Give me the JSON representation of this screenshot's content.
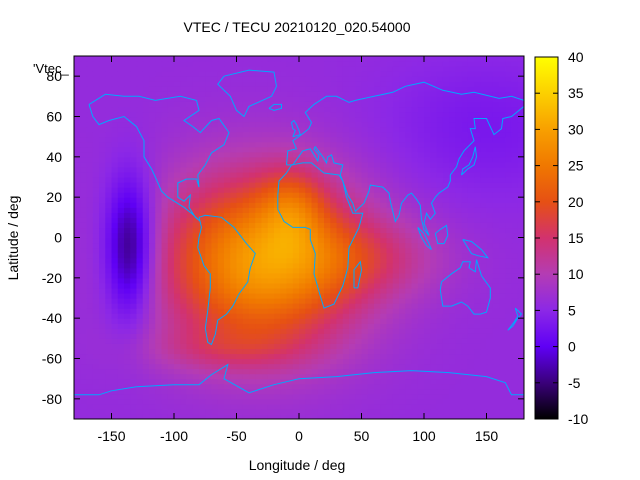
{
  "chart_data": {
    "type": "heatmap",
    "title": "VTEC / TECU 20210120_020.54000",
    "xlabel": "Longitude / deg",
    "ylabel": "Latitude / deg",
    "series_label": "'Vtec_",
    "xlim": [
      -180,
      180
    ],
    "ylim": [
      -90,
      90
    ],
    "x_ticks": [
      -150,
      -100,
      -50,
      0,
      50,
      100,
      150
    ],
    "y_ticks": [
      -80,
      -60,
      -40,
      -20,
      0,
      20,
      40,
      60,
      80
    ],
    "colorbar": {
      "range": [
        -10,
        40
      ],
      "ticks": [
        -10,
        -5,
        0,
        5,
        10,
        15,
        20,
        25,
        30,
        35,
        40
      ]
    },
    "features": [
      {
        "kind": "max",
        "lon": -5,
        "lat": 15,
        "value": 33
      },
      {
        "kind": "min",
        "lon": -135,
        "lat": -5,
        "value": -7
      },
      {
        "kind": "low",
        "lon": -175,
        "lat": -10,
        "value": 6
      }
    ],
    "colors": {
      "background_vtec": "#8c28e6",
      "outline": "#00a8ff"
    }
  }
}
